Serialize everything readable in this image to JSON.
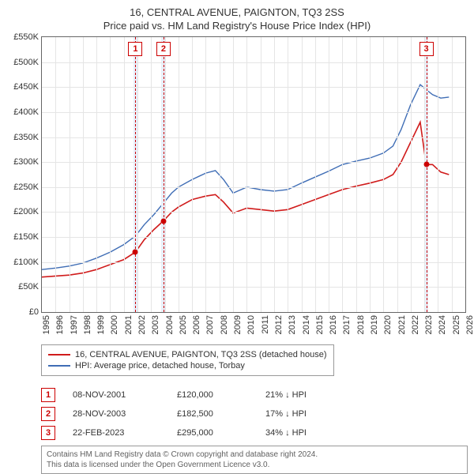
{
  "title": "16, CENTRAL AVENUE, PAIGNTON, TQ3 2SS",
  "subtitle": "Price paid vs. HM Land Registry's House Price Index (HPI)",
  "chart": {
    "type": "line",
    "x_min": 1995,
    "x_max": 2026,
    "x_ticks": [
      1995,
      1996,
      1997,
      1998,
      1999,
      2000,
      2001,
      2002,
      2003,
      2004,
      2005,
      2006,
      2007,
      2008,
      2009,
      2010,
      2011,
      2012,
      2013,
      2014,
      2015,
      2016,
      2017,
      2018,
      2019,
      2020,
      2021,
      2022,
      2023,
      2024,
      2025,
      2026
    ],
    "y_min": 0,
    "y_max": 550000,
    "y_ticks": [
      0,
      50000,
      100000,
      150000,
      200000,
      250000,
      300000,
      350000,
      400000,
      450000,
      500000,
      550000
    ],
    "y_tick_labels": [
      "£0",
      "£50K",
      "£100K",
      "£150K",
      "£200K",
      "£250K",
      "£300K",
      "£350K",
      "£400K",
      "£450K",
      "£500K",
      "£550K"
    ],
    "grid_color": "#e5e5e5",
    "background_color": "#ffffff",
    "band_color": "#e8effa",
    "axis_fontsize": 11,
    "series": [
      {
        "key": "subject",
        "label": "16, CENTRAL AVENUE, PAIGNTON, TQ3 2SS (detached house)",
        "color": "#d01b1b",
        "line_width": 1.6,
        "points": [
          [
            1995.0,
            70000
          ],
          [
            1996.0,
            72000
          ],
          [
            1997.0,
            74000
          ],
          [
            1998.0,
            78000
          ],
          [
            1999.0,
            85000
          ],
          [
            2000.0,
            95000
          ],
          [
            2001.0,
            105000
          ],
          [
            2001.85,
            120000
          ],
          [
            2002.5,
            145000
          ],
          [
            2003.2,
            165000
          ],
          [
            2003.9,
            182500
          ],
          [
            2004.5,
            200000
          ],
          [
            2005.0,
            210000
          ],
          [
            2006.0,
            225000
          ],
          [
            2007.0,
            232000
          ],
          [
            2007.7,
            235000
          ],
          [
            2008.3,
            220000
          ],
          [
            2009.0,
            198000
          ],
          [
            2010.0,
            208000
          ],
          [
            2011.0,
            205000
          ],
          [
            2012.0,
            202000
          ],
          [
            2013.0,
            205000
          ],
          [
            2014.0,
            215000
          ],
          [
            2015.0,
            225000
          ],
          [
            2016.0,
            235000
          ],
          [
            2017.0,
            245000
          ],
          [
            2018.0,
            252000
          ],
          [
            2019.0,
            258000
          ],
          [
            2020.0,
            265000
          ],
          [
            2020.7,
            275000
          ],
          [
            2021.3,
            300000
          ],
          [
            2022.0,
            340000
          ],
          [
            2022.7,
            380000
          ],
          [
            2023.14,
            295000
          ],
          [
            2023.6,
            295000
          ],
          [
            2024.2,
            280000
          ],
          [
            2024.8,
            275000
          ]
        ]
      },
      {
        "key": "hpi",
        "label": "HPI: Average price, detached house, Torbay",
        "color": "#3f6db5",
        "line_width": 1.4,
        "points": [
          [
            1995.0,
            85000
          ],
          [
            1996.0,
            88000
          ],
          [
            1997.0,
            92000
          ],
          [
            1998.0,
            98000
          ],
          [
            1999.0,
            108000
          ],
          [
            2000.0,
            120000
          ],
          [
            2001.0,
            135000
          ],
          [
            2001.85,
            152000
          ],
          [
            2002.5,
            175000
          ],
          [
            2003.2,
            195000
          ],
          [
            2003.9,
            218000
          ],
          [
            2004.5,
            238000
          ],
          [
            2005.0,
            250000
          ],
          [
            2006.0,
            265000
          ],
          [
            2007.0,
            278000
          ],
          [
            2007.7,
            283000
          ],
          [
            2008.3,
            265000
          ],
          [
            2009.0,
            238000
          ],
          [
            2010.0,
            250000
          ],
          [
            2011.0,
            245000
          ],
          [
            2012.0,
            242000
          ],
          [
            2013.0,
            245000
          ],
          [
            2014.0,
            258000
          ],
          [
            2015.0,
            270000
          ],
          [
            2016.0,
            282000
          ],
          [
            2017.0,
            295000
          ],
          [
            2018.0,
            302000
          ],
          [
            2019.0,
            308000
          ],
          [
            2020.0,
            318000
          ],
          [
            2020.7,
            332000
          ],
          [
            2021.3,
            365000
          ],
          [
            2022.0,
            415000
          ],
          [
            2022.7,
            455000
          ],
          [
            2023.14,
            445000
          ],
          [
            2023.6,
            435000
          ],
          [
            2024.2,
            428000
          ],
          [
            2024.8,
            430000
          ]
        ]
      }
    ],
    "sale_markers": [
      {
        "n": "1",
        "x": 2001.85,
        "y": 120000,
        "band_start": 2001.7,
        "band_end": 2002.0
      },
      {
        "n": "2",
        "x": 2003.9,
        "y": 182500,
        "band_start": 2003.75,
        "band_end": 2004.05
      },
      {
        "n": "3",
        "x": 2023.14,
        "y": 295000,
        "band_start": 2023.0,
        "band_end": 2023.3
      }
    ]
  },
  "legend": {
    "items": [
      {
        "color": "#d01b1b",
        "label": "16, CENTRAL AVENUE, PAIGNTON, TQ3 2SS (detached house)"
      },
      {
        "color": "#3f6db5",
        "label": "HPI: Average price, detached house, Torbay"
      }
    ]
  },
  "sales": [
    {
      "n": "1",
      "date": "08-NOV-2001",
      "price": "£120,000",
      "delta": "21% ↓ HPI"
    },
    {
      "n": "2",
      "date": "28-NOV-2003",
      "price": "£182,500",
      "delta": "17% ↓ HPI"
    },
    {
      "n": "3",
      "date": "22-FEB-2023",
      "price": "£295,000",
      "delta": "34% ↓ HPI"
    }
  ],
  "attribution": {
    "line1": "Contains HM Land Registry data © Crown copyright and database right 2024.",
    "line2": "This data is licensed under the Open Government Licence v3.0."
  }
}
